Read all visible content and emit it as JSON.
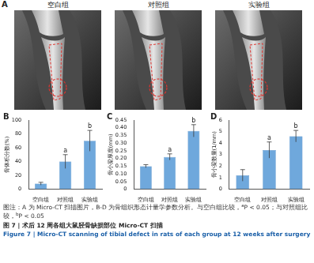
{
  "panel_a": {
    "letter": "A",
    "images": [
      "空白组",
      "对照组",
      "实验组"
    ]
  },
  "chart_data": [
    {
      "panel": "B",
      "type": "bar",
      "categories": [
        "空白组",
        "对照组",
        "实验组"
      ],
      "values": [
        8,
        40,
        70
      ],
      "errors": [
        2,
        10,
        15
      ],
      "annotations": [
        null,
        "a",
        "b"
      ],
      "color": "#6fa8dc",
      "y_label": "骨体积分数(%)",
      "ylim": [
        0,
        100
      ],
      "yticks": [
        0,
        20,
        40,
        60,
        80,
        100
      ],
      "grid": false
    },
    {
      "panel": "C",
      "type": "bar",
      "categories": [
        "空白组",
        "对照组",
        "实验组"
      ],
      "values": [
        0.15,
        0.21,
        0.38
      ],
      "errors": [
        0.01,
        0.02,
        0.04
      ],
      "annotations": [
        null,
        "a",
        "b"
      ],
      "color": "#6fa8dc",
      "y_label": "骨小梁厚度(mm)",
      "ylim": [
        0,
        0.45
      ],
      "yticks": [
        0,
        0.05,
        {
          "value": 0.1,
          "label": "0.10"
        },
        0.15,
        {
          "value": 0.2,
          "label": "0.20"
        },
        0.25,
        {
          "value": 0.3,
          "label": "0.30"
        },
        0.35,
        {
          "value": 0.4,
          "label": "0.40"
        },
        0.45
      ],
      "grid": false
    },
    {
      "panel": "D",
      "type": "bar",
      "categories": [
        "空白组",
        "对照组",
        "实验组"
      ],
      "values": [
        1.2,
        3.4,
        4.6
      ],
      "errors": [
        0.5,
        0.7,
        0.5
      ],
      "annotations": [
        null,
        "a",
        "b"
      ],
      "color": "#6fa8dc",
      "y_label": "骨小梁数量(1/mm)",
      "ylim": [
        0,
        6
      ],
      "yticks": [
        0,
        1,
        2,
        3,
        4,
        5,
        6
      ],
      "grid": false
    }
  ],
  "caption": {
    "note": [
      {
        "text": "图注：A 为 Micro-CT 扫描图片，B-D 为骨组织形态计量学参数分析。与空白组比较，"
      },
      {
        "text": "a",
        "sup": true
      },
      {
        "text": "P < 0.05；与对照组比较，"
      },
      {
        "text": "b",
        "sup": true
      },
      {
        "text": "P < 0.05"
      }
    ],
    "title_cn": "图 7 | 术后 12 周各组大鼠胫骨缺损部位 Micro-CT 扫描",
    "title_en": "Figure 7 | Micro-CT scanning of tibial defect in rats of each group at 12 weeks after surgery"
  }
}
